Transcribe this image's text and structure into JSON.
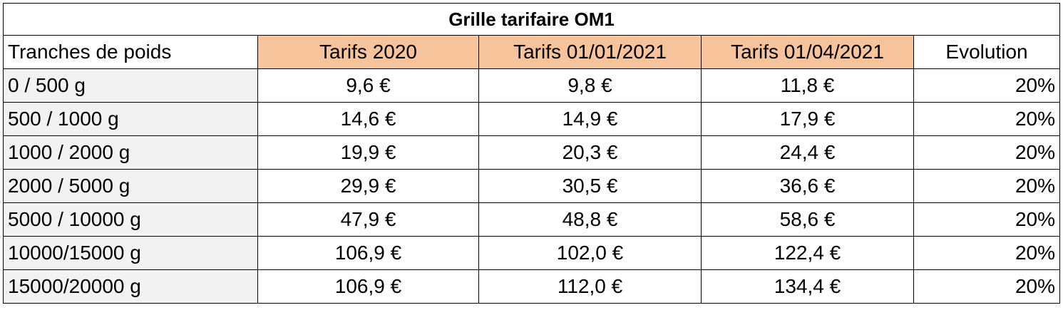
{
  "table": {
    "title": "Grille tarifaire OM1",
    "header": [
      "Tranches de poids",
      "Tarifs 2020",
      "Tarifs 01/01/2021",
      "Tarifs 01/04/2021",
      "Evolution"
    ],
    "rows": [
      [
        "0 / 500 g",
        "9,6 €",
        "9,8 €",
        "11,8 €",
        "20%"
      ],
      [
        "500 / 1000 g",
        "14,6 €",
        "14,9 €",
        "17,9 €",
        "20%"
      ],
      [
        "1000 / 2000 g",
        "19,9 €",
        "20,3 €",
        "24,4 €",
        "20%"
      ],
      [
        "2000 / 5000 g",
        "29,9 €",
        "30,5 €",
        "36,6 €",
        "20%"
      ],
      [
        "5000 / 10000 g",
        "47,9 €",
        "48,8 €",
        "58,6 €",
        "20%"
      ],
      [
        "10000/15000 g",
        "106,9 €",
        "102,0 €",
        "122,4 €",
        "20%"
      ],
      [
        "15000/20000 g",
        "106,9 €",
        "112,0 €",
        "134,4 €",
        "20%"
      ]
    ]
  }
}
